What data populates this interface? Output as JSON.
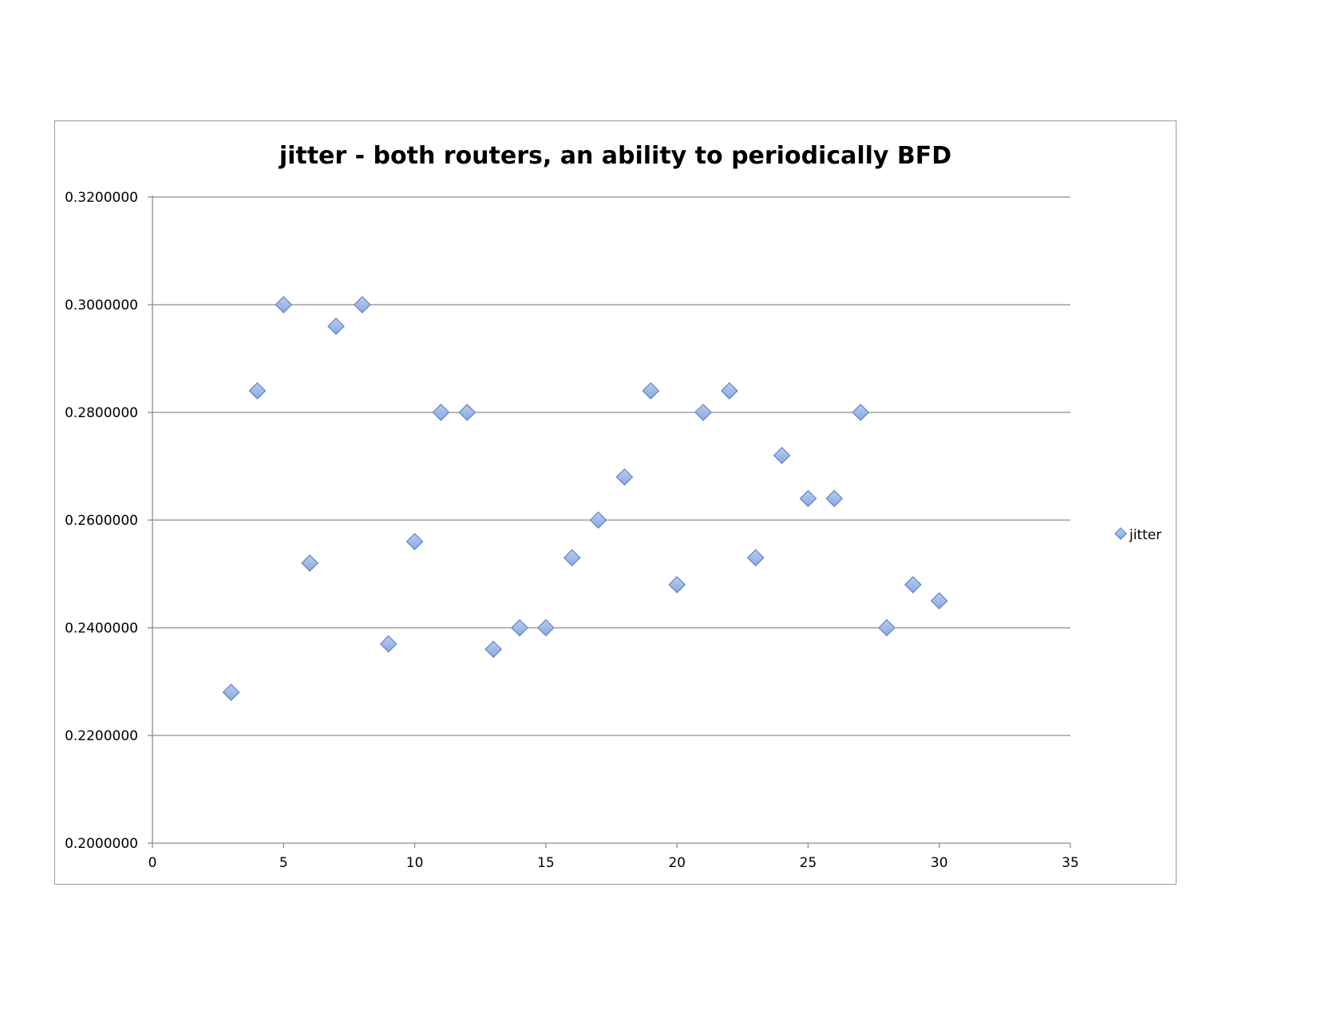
{
  "chart_data": {
    "type": "scatter",
    "title": "jitter - both routers, an ability to periodically BFD",
    "xlabel": "",
    "ylabel": "",
    "xlim": [
      0,
      35
    ],
    "ylim": [
      0.2,
      0.32
    ],
    "x_ticks": [
      0,
      5,
      10,
      15,
      20,
      25,
      30,
      35
    ],
    "x_tick_labels": [
      "0",
      "5",
      "10",
      "15",
      "20",
      "25",
      "30",
      "35"
    ],
    "y_ticks": [
      0.2,
      0.22,
      0.24,
      0.26,
      0.28,
      0.3,
      0.32
    ],
    "y_tick_labels": [
      "0.2000000",
      "0.2200000",
      "0.2400000",
      "0.2600000",
      "0.2800000",
      "0.3000000",
      "0.3200000"
    ],
    "grid": "horizontal",
    "legend_position": "right",
    "series": [
      {
        "name": "jitter",
        "color": "#8aa9e0",
        "marker": "diamond",
        "x": [
          3,
          4,
          5,
          6,
          7,
          8,
          9,
          10,
          11,
          12,
          13,
          14,
          15,
          16,
          17,
          18,
          19,
          20,
          21,
          22,
          23,
          24,
          25,
          26,
          27,
          28,
          29,
          30
        ],
        "y": [
          0.228,
          0.284,
          0.3,
          0.252,
          0.296,
          0.3,
          0.237,
          0.256,
          0.28,
          0.28,
          0.236,
          0.24,
          0.24,
          0.253,
          0.26,
          0.268,
          0.284,
          0.248,
          0.28,
          0.284,
          0.253,
          0.272,
          0.264,
          0.264,
          0.28,
          0.24,
          0.248,
          0.245
        ]
      }
    ]
  }
}
